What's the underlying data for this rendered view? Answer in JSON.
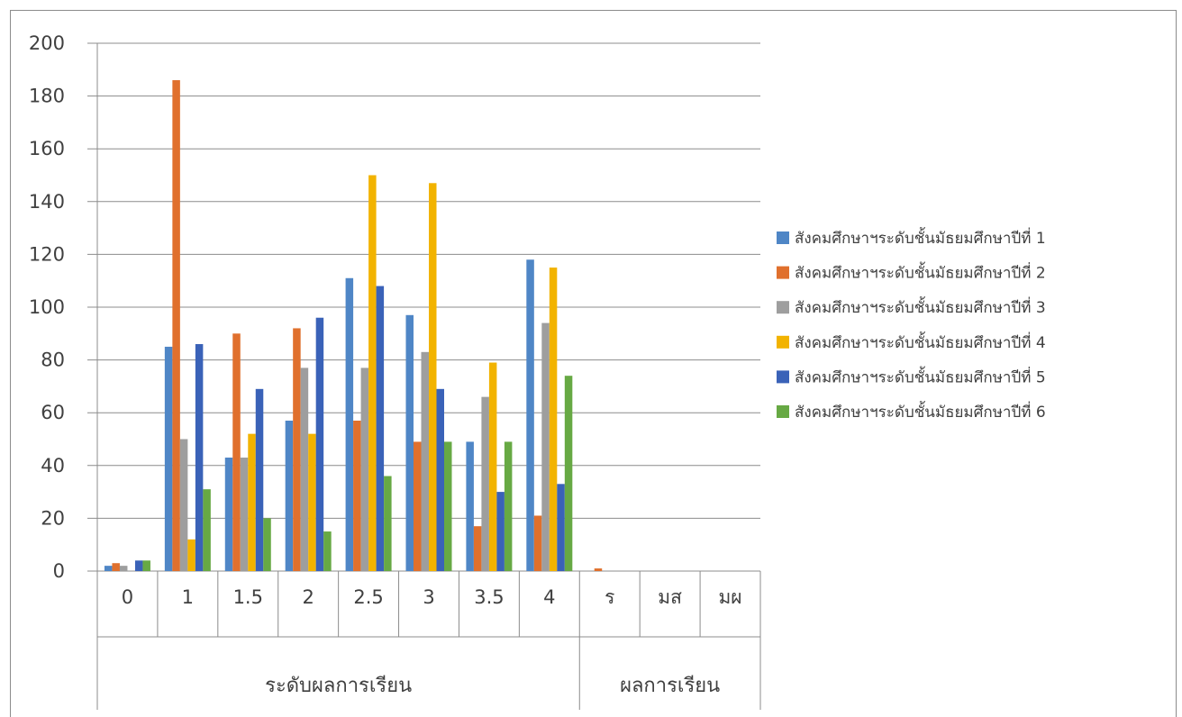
{
  "chart_data": {
    "type": "bar",
    "title": "",
    "xlabel": "",
    "ylabel": "",
    "ylim": [
      0,
      200
    ],
    "yticks": [
      0,
      20,
      40,
      60,
      80,
      100,
      120,
      140,
      160,
      180,
      200
    ],
    "grid": true,
    "legend_position": "right",
    "categories": [
      "0",
      "1",
      "1.5",
      "2",
      "2.5",
      "3",
      "3.5",
      "4",
      "ร",
      "มส",
      "มผ"
    ],
    "category_groups": [
      {
        "label": "ระดับผลการเรียน",
        "from": 0,
        "to": 7
      },
      {
        "label": "ผลการเรียน",
        "from": 8,
        "to": 10
      }
    ],
    "series": [
      {
        "name": "สังคมศึกษาฯระดับชั้นมัธยมศึกษาปีที่ 1",
        "color": "#4f86c6",
        "values": [
          2,
          85,
          43,
          57,
          111,
          97,
          49,
          118,
          0,
          0,
          0
        ]
      },
      {
        "name": "สังคมศึกษาฯระดับชั้นมัธยมศึกษาปีที่ 2",
        "color": "#e0702d",
        "values": [
          3,
          186,
          90,
          92,
          57,
          49,
          17,
          21,
          1,
          0,
          0
        ]
      },
      {
        "name": "สังคมศึกษาฯระดับชั้นมัธยมศึกษาปีที่ 3",
        "color": "#9e9e9e",
        "values": [
          2,
          50,
          43,
          77,
          77,
          83,
          66,
          94,
          0,
          0,
          0
        ]
      },
      {
        "name": "สังคมศึกษาฯระดับชั้นมัธยมศึกษาปีที่ 4",
        "color": "#f2b300",
        "values": [
          0,
          12,
          52,
          52,
          150,
          147,
          79,
          115,
          0,
          0,
          0
        ]
      },
      {
        "name": "สังคมศึกษาฯระดับชั้นมัธยมศึกษาปีที่ 5",
        "color": "#3a62b8",
        "values": [
          4,
          86,
          69,
          96,
          108,
          69,
          30,
          33,
          0,
          0,
          0
        ]
      },
      {
        "name": "สังคมศึกษาฯระดับชั้นมัธยมศึกษาปีที่ 6",
        "color": "#67a944",
        "values": [
          4,
          31,
          20,
          15,
          36,
          49,
          49,
          74,
          0,
          0,
          0
        ]
      }
    ]
  }
}
